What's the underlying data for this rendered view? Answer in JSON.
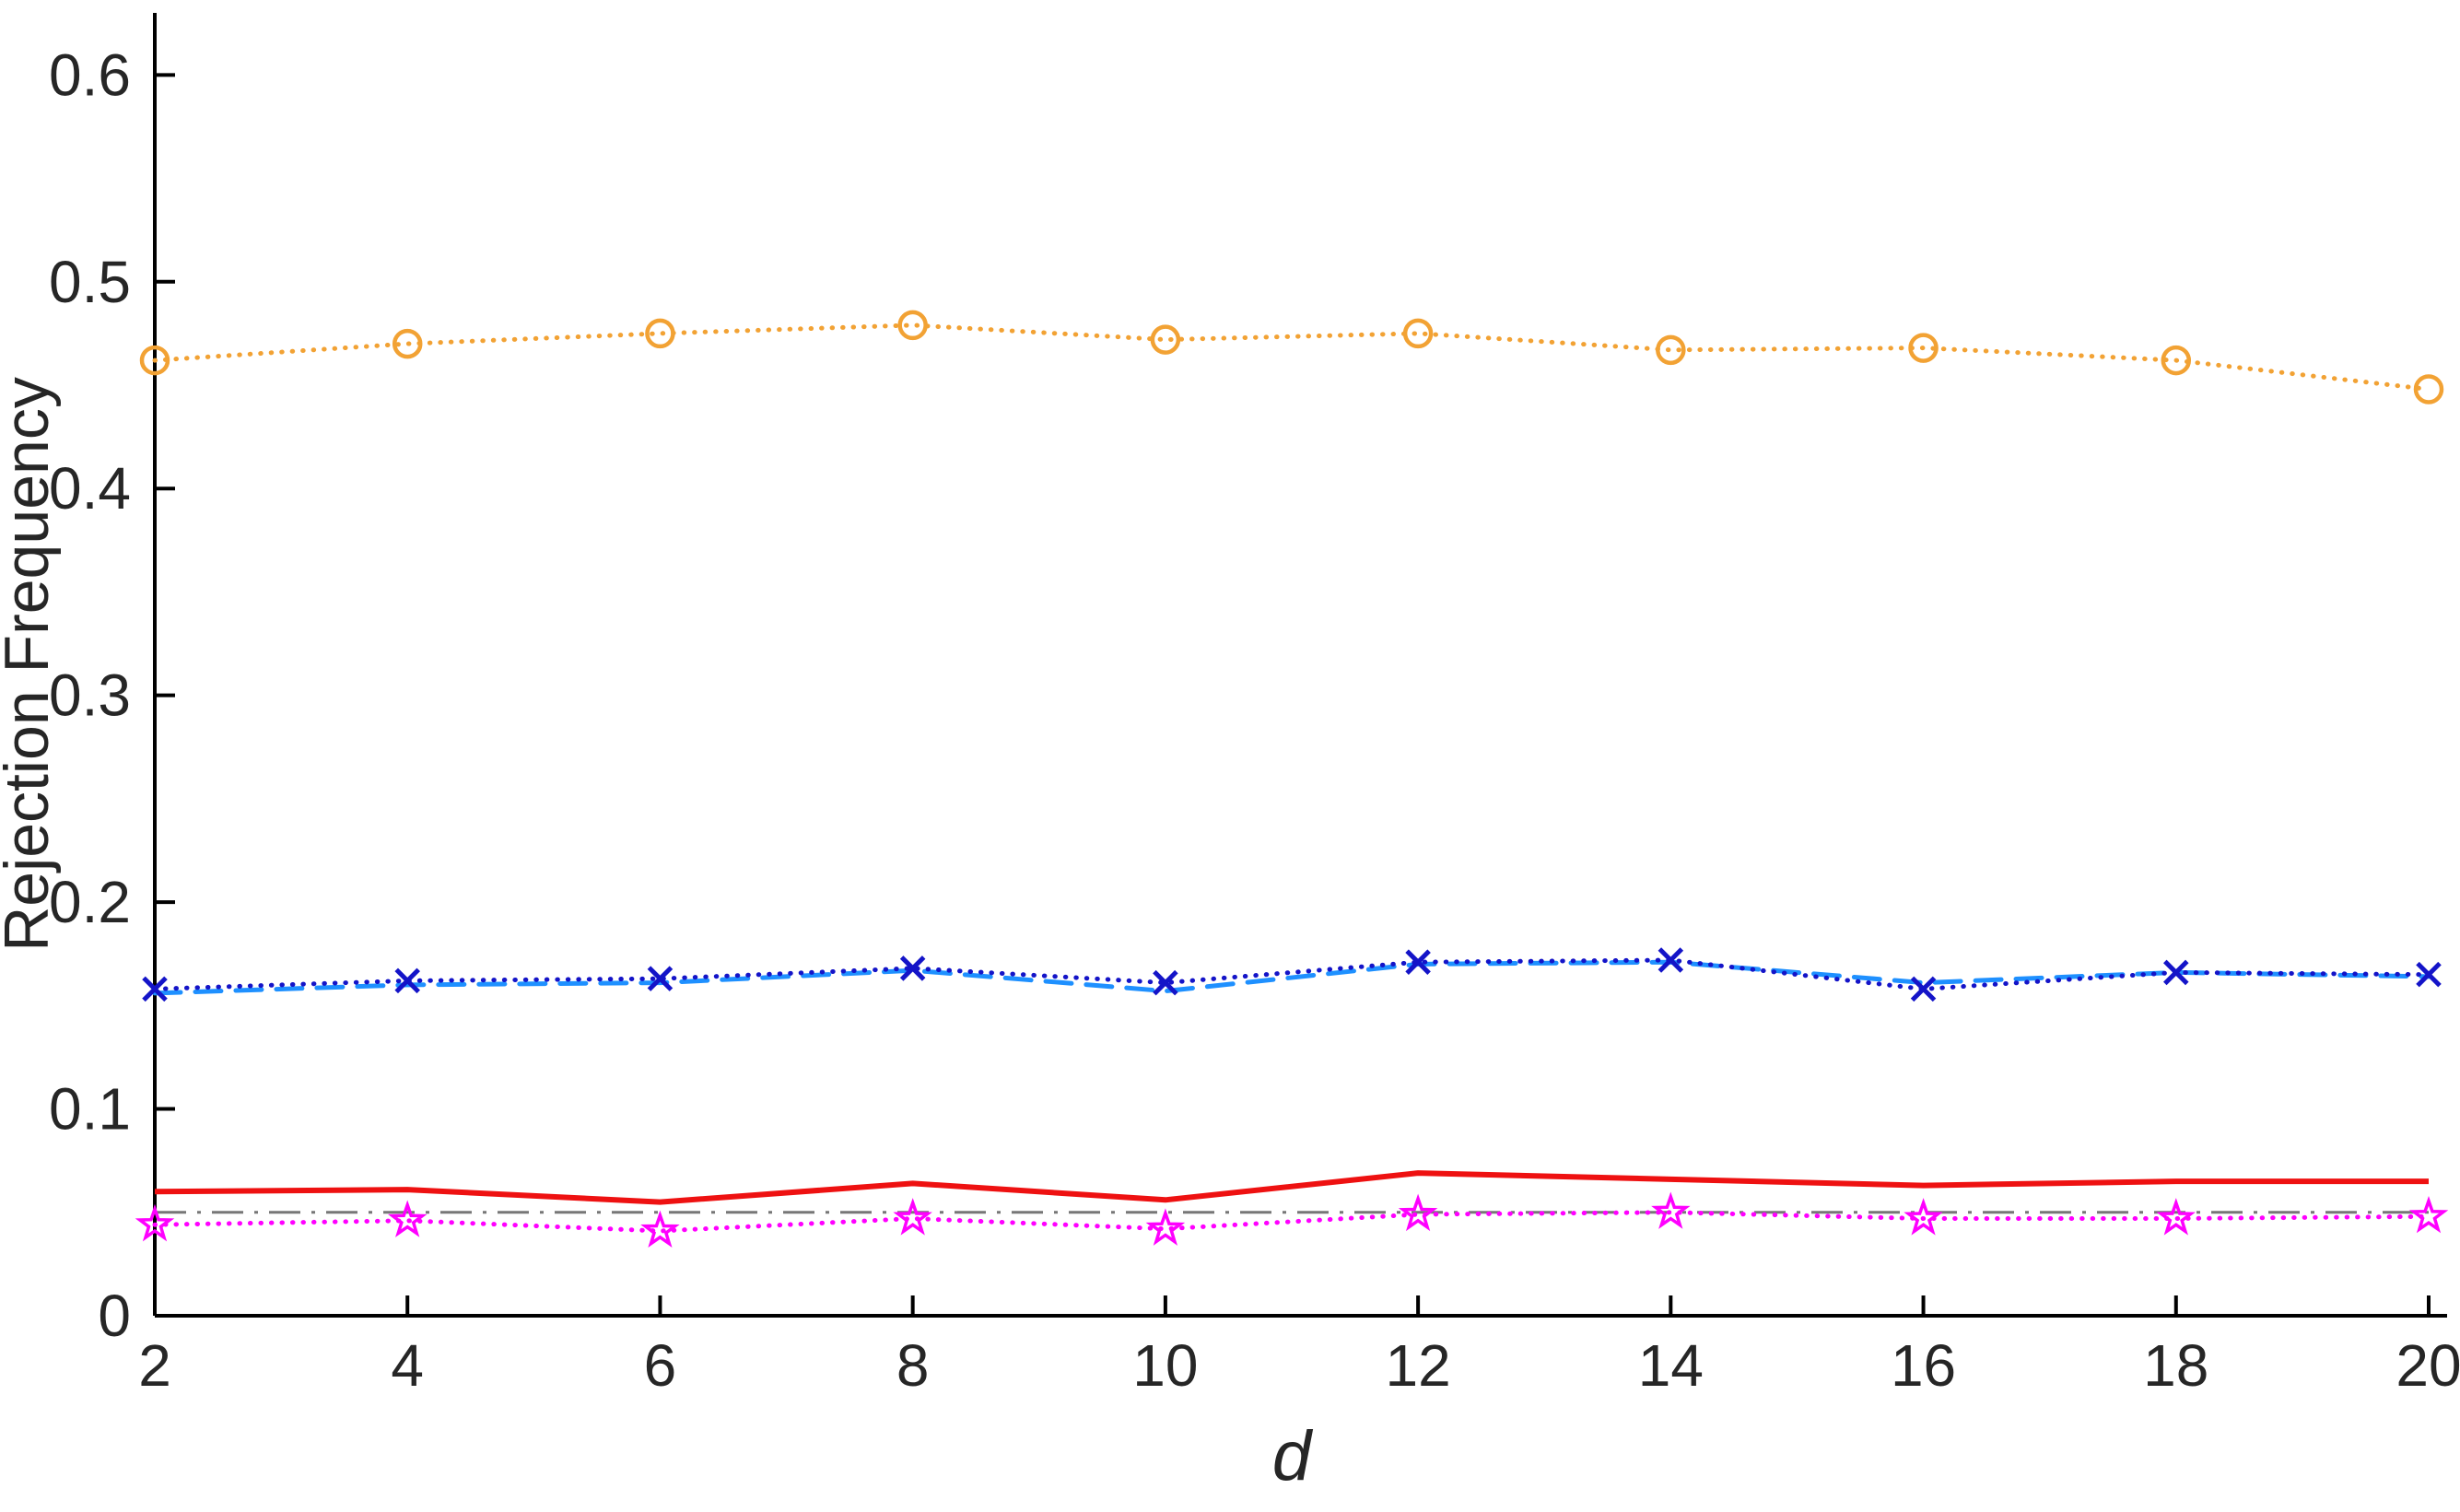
{
  "figure": {
    "background_color": "#ffffff",
    "axis_color": "#000000",
    "text_color": "#262626"
  },
  "chart_data": {
    "type": "line",
    "title": "",
    "xlabel": "d",
    "ylabel": "Rejection Frequency",
    "xlim": [
      2,
      20
    ],
    "ylim": [
      0,
      0.63
    ],
    "xticks": [
      2,
      4,
      6,
      8,
      10,
      12,
      14,
      16,
      18,
      20
    ],
    "xticklabels": [
      "2",
      "4",
      "6",
      "8",
      "10",
      "12",
      "14",
      "16",
      "18",
      "20"
    ],
    "yticks": [
      0,
      0.1,
      0.2,
      0.3,
      0.4,
      0.5,
      0.6
    ],
    "yticklabels": [
      "0",
      "0.1",
      "0.2",
      "0.3",
      "0.4",
      "0.5",
      "0.6"
    ],
    "grid": false,
    "legend": null,
    "x": [
      2,
      4,
      6,
      8,
      10,
      12,
      14,
      16,
      18,
      20
    ],
    "series": [
      {
        "id": "orange-dotted-circles",
        "name": "orange dotted line with open circle markers",
        "color": "#F2A234",
        "line": "dotted",
        "marker": "circle",
        "width": 5,
        "values": [
          0.462,
          0.47,
          0.475,
          0.479,
          0.472,
          0.475,
          0.467,
          0.468,
          0.462,
          0.448
        ]
      },
      {
        "id": "light-blue-dashed",
        "name": "light blue dashed line",
        "color": "#1E90FF",
        "line": "dashed",
        "marker": "none",
        "width": 5,
        "values": [
          0.156,
          0.16,
          0.161,
          0.167,
          0.157,
          0.17,
          0.171,
          0.161,
          0.166,
          0.164
        ]
      },
      {
        "id": "dark-blue-dotted-x",
        "name": "dark blue dotted line with x markers",
        "color": "#1414C8",
        "line": "dotted",
        "marker": "x",
        "width": 5,
        "values": [
          0.158,
          0.162,
          0.163,
          0.168,
          0.161,
          0.171,
          0.172,
          0.158,
          0.166,
          0.165
        ]
      },
      {
        "id": "red-solid",
        "name": "red solid line",
        "color": "#EE1111",
        "line": "solid",
        "marker": "none",
        "width": 6,
        "values": [
          0.06,
          0.061,
          0.055,
          0.064,
          0.056,
          0.069,
          0.066,
          0.063,
          0.065,
          0.065
        ]
      },
      {
        "id": "magenta-dotted-stars",
        "name": "magenta dotted line with pentagram markers",
        "color": "#FF00FF",
        "line": "dotted",
        "marker": "star",
        "width": 5,
        "values": [
          0.044,
          0.046,
          0.041,
          0.047,
          0.042,
          0.049,
          0.05,
          0.047,
          0.047,
          0.048
        ]
      }
    ],
    "reference_line": {
      "y": 0.05,
      "color": "#777777",
      "style": "dashdot",
      "width": 3
    }
  }
}
